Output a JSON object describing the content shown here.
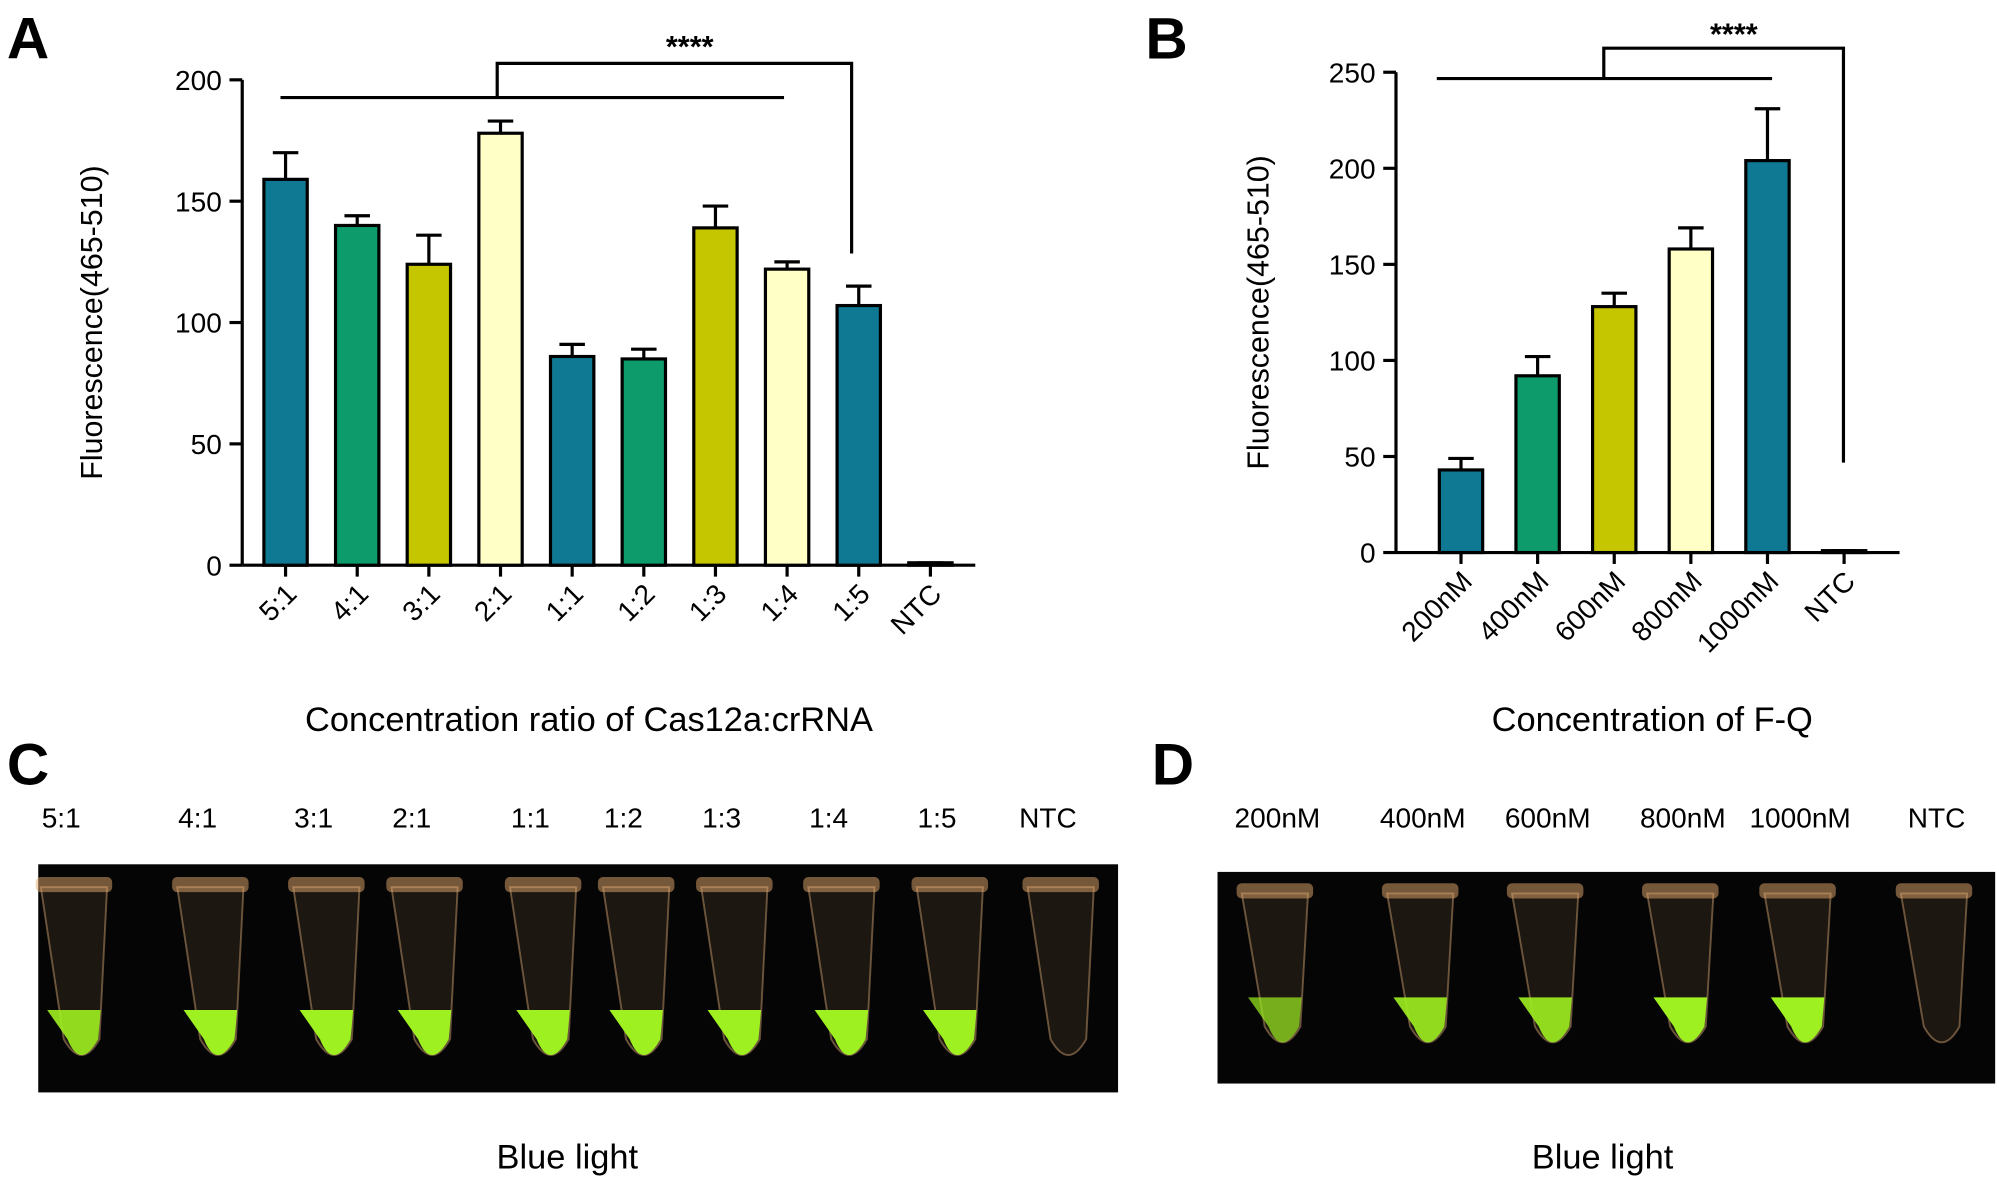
{
  "chart_data": [
    {
      "type": "bar",
      "panel_label": "A",
      "y_label": "Fluorescence(465-510)",
      "x_label": "Concentration ratio of Cas12a:crRNA",
      "annotation": "****",
      "categories": [
        "5:1",
        "4:1",
        "3:1",
        "2:1",
        "1:1",
        "1:2",
        "1:3",
        "1:4",
        "1:5",
        "NTC"
      ],
      "values": [
        159,
        140,
        124,
        178,
        86,
        85,
        139,
        122,
        107,
        1
      ],
      "errors": [
        11,
        4,
        12,
        5,
        5,
        4,
        9,
        3,
        8,
        0
      ],
      "colors": [
        "#0f7893",
        "#0e9b6b",
        "#c5c500",
        "#ffffc6",
        "#0f7893",
        "#0e9b6b",
        "#c5c500",
        "#ffffc6",
        "#0f7893",
        "#0f7893"
      ],
      "ylim": [
        0,
        200
      ],
      "yticks": [
        0,
        50,
        100,
        150,
        200
      ]
    },
    {
      "type": "bar",
      "panel_label": "B",
      "y_label": "Fluorescence(465-510)",
      "x_label": "Concentration of F-Q",
      "annotation": "****",
      "categories": [
        "200nM",
        "400nM",
        "600nM",
        "800nM",
        "1000nM",
        "NTC"
      ],
      "values": [
        43,
        92,
        128,
        158,
        204,
        1
      ],
      "errors": [
        6,
        10,
        7,
        11,
        27,
        0
      ],
      "colors": [
        "#0f7893",
        "#0e9b6b",
        "#c5c500",
        "#ffffc6",
        "#0f7893",
        "#0f7893"
      ],
      "ylim": [
        0,
        250
      ],
      "yticks": [
        0,
        50,
        100,
        150,
        200,
        250
      ]
    }
  ],
  "photos": [
    {
      "panel_label": "C",
      "labels": [
        "5:1",
        "4:1",
        "3:1",
        "2:1",
        "1:1",
        "1:2",
        "1:3",
        "1:4",
        "1:5",
        "NTC"
      ],
      "caption": "Blue light"
    },
    {
      "panel_label": "D",
      "labels": [
        "200nM",
        "400nM",
        "600nM",
        "800nM",
        "1000nM",
        "NTC"
      ],
      "caption": "Blue light"
    }
  ]
}
